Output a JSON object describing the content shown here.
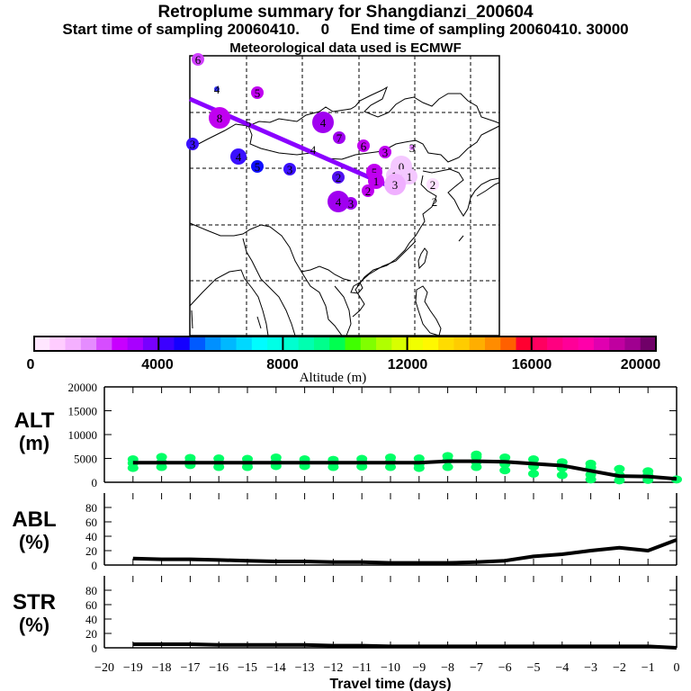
{
  "header": {
    "title": "Retroplume summary for Shangdianzi_200604",
    "subtitle": "Start time of sampling 20060410.     0     End time of sampling 20060410. 30000",
    "met_line": "Meteorological data used is ECMWF"
  },
  "map": {
    "description": "East Asia retroplume cluster map",
    "trajectory_color": "#8a00ff",
    "clusters": [
      {
        "label": "6",
        "color": "#d040ff",
        "size": "small",
        "region": "far-northwest"
      },
      {
        "label": "4",
        "color": "#3030ff",
        "size": "tiny",
        "region": "northwest"
      },
      {
        "label": "5",
        "color": "#c000f0",
        "size": "small",
        "region": "northwest"
      },
      {
        "label": "8",
        "color": "#c000f0",
        "size": "large",
        "region": "west"
      },
      {
        "label": "5",
        "color": "#000000",
        "size": "text",
        "region": "west"
      },
      {
        "label": "3",
        "color": "#3a10ff",
        "size": "small",
        "region": "far-west"
      },
      {
        "label": "4",
        "color": "#3a10ff",
        "size": "medium",
        "region": "west"
      },
      {
        "label": "5",
        "color": "#1010ff",
        "size": "small",
        "region": "west-central"
      },
      {
        "label": "3",
        "color": "#3a10ff",
        "size": "small",
        "region": "central"
      },
      {
        "label": "4",
        "color": "#000000",
        "size": "text",
        "region": "central"
      },
      {
        "label": "4",
        "color": "#a000f0",
        "size": "large",
        "region": "north-central"
      },
      {
        "label": "7",
        "color": "#a000f0",
        "size": "small",
        "region": "north-central"
      },
      {
        "label": "6",
        "color": "#c000f0",
        "size": "small",
        "region": "north"
      },
      {
        "label": "3",
        "color": "#c000f0",
        "size": "small",
        "region": "north"
      },
      {
        "label": "3",
        "color": "#e080ff",
        "size": "tiny",
        "region": "northeast"
      },
      {
        "label": "2",
        "color": "#5010f0",
        "size": "small",
        "region": "central"
      },
      {
        "label": "5",
        "color": "#c000f0",
        "size": "medium",
        "region": "near-source"
      },
      {
        "label": "1",
        "color": "#c000f0",
        "size": "medium",
        "region": "near-source"
      },
      {
        "label": "2",
        "color": "#c000f0",
        "size": "small",
        "region": "near-source"
      },
      {
        "label": "0",
        "color": "#f4c8ff",
        "size": "large",
        "region": "source"
      },
      {
        "label": "1",
        "color": "#f4c8ff",
        "size": "medium",
        "region": "source"
      },
      {
        "label": "1",
        "color": "#f4c8ff",
        "size": "medium",
        "region": "source"
      },
      {
        "label": "1",
        "color": "#f4c8ff",
        "size": "medium",
        "region": "source"
      },
      {
        "label": "3",
        "color": "#f0b0ff",
        "size": "large",
        "region": "source"
      },
      {
        "label": "4",
        "color": "#a000f0",
        "size": "large",
        "region": "south-central"
      },
      {
        "label": "3",
        "color": "#a000f0",
        "size": "small",
        "region": "south-central"
      },
      {
        "label": "2",
        "color": "#fce0ff",
        "size": "small",
        "region": "east"
      },
      {
        "label": "2",
        "color": "#ffffff",
        "size": "text",
        "region": "east"
      }
    ]
  },
  "colorbar": {
    "label": "Altitude (m)",
    "tick_labels": [
      "0",
      "4000",
      "8000",
      "12000",
      "16000",
      "20000"
    ],
    "range": [
      0,
      20000
    ],
    "colors": [
      "#ffe6ff",
      "#ffccff",
      "#f4b0ff",
      "#e58cff",
      "#d64dff",
      "#c800ff",
      "#a800ff",
      "#7800ff",
      "#3c00ff",
      "#1400ff",
      "#005aff",
      "#0090ff",
      "#00b8ff",
      "#00d8ff",
      "#00fcff",
      "#00ffe6",
      "#00ffd0",
      "#00ffb0",
      "#00ff8c",
      "#00ff50",
      "#40ff00",
      "#80ff00",
      "#b0ff00",
      "#d8ff00",
      "#f0ff00",
      "#fff800",
      "#ffdc00",
      "#ffcc00",
      "#ffae00",
      "#ff8c00",
      "#ff6000",
      "#ff0030",
      "#ff0060",
      "#ff0080",
      "#ff0098",
      "#ff00aa",
      "#e000b0",
      "#c000a0",
      "#a00090",
      "#700068"
    ]
  },
  "chart_data": [
    {
      "type": "line",
      "panel": "ALT",
      "ylabel": "ALT (m)",
      "ylim": [
        0,
        20000
      ],
      "yticks": [
        "0",
        "5000",
        "10000",
        "15000",
        "20000"
      ],
      "x": [
        -19,
        -18,
        -17,
        -16,
        -15,
        -14,
        -13,
        -12,
        -11,
        -10,
        -9,
        -8,
        -7,
        -6,
        -5,
        -4,
        -3,
        -2,
        -1,
        0
      ],
      "series": [
        {
          "name": "mean altitude",
          "color": "#000000",
          "values": [
            4100,
            4100,
            4100,
            4100,
            4100,
            4100,
            4100,
            4100,
            4100,
            4100,
            4100,
            4400,
            4400,
            4300,
            3900,
            3500,
            2400,
            1300,
            1200,
            700
          ]
        }
      ],
      "scatter": {
        "name": "cluster altitudes",
        "color": "#00ff66",
        "points": [
          [
            -19,
            3000
          ],
          [
            -19,
            4000
          ],
          [
            -19,
            4800
          ],
          [
            -18,
            3200
          ],
          [
            -18,
            4200
          ],
          [
            -18,
            5300
          ],
          [
            -17,
            3600
          ],
          [
            -17,
            4400
          ],
          [
            -17,
            5100
          ],
          [
            -16,
            3200
          ],
          [
            -16,
            4100
          ],
          [
            -16,
            5000
          ],
          [
            -15,
            3200
          ],
          [
            -15,
            4000
          ],
          [
            -15,
            4900
          ],
          [
            -14,
            3400
          ],
          [
            -14,
            4300
          ],
          [
            -14,
            5200
          ],
          [
            -13,
            3400
          ],
          [
            -13,
            4100
          ],
          [
            -13,
            4800
          ],
          [
            -12,
            3200
          ],
          [
            -12,
            4000
          ],
          [
            -12,
            4700
          ],
          [
            -11,
            3300
          ],
          [
            -11,
            4200
          ],
          [
            -11,
            4900
          ],
          [
            -10,
            3200
          ],
          [
            -10,
            4300
          ],
          [
            -10,
            5200
          ],
          [
            -9,
            3000
          ],
          [
            -9,
            3800
          ],
          [
            -9,
            5000
          ],
          [
            -8,
            3200
          ],
          [
            -8,
            4600
          ],
          [
            -8,
            5500
          ],
          [
            -7,
            3200
          ],
          [
            -7,
            4300
          ],
          [
            -7,
            5300
          ],
          [
            -7,
            5800
          ],
          [
            -6,
            2500
          ],
          [
            -6,
            3800
          ],
          [
            -6,
            5200
          ],
          [
            -5,
            1800
          ],
          [
            -5,
            3300
          ],
          [
            -5,
            4800
          ],
          [
            -4,
            1500
          ],
          [
            -4,
            3000
          ],
          [
            -4,
            4200
          ],
          [
            -3,
            600
          ],
          [
            -3,
            1600
          ],
          [
            -3,
            3100
          ],
          [
            -3,
            3900
          ],
          [
            -2,
            400
          ],
          [
            -2,
            1500
          ],
          [
            -2,
            2800
          ],
          [
            -1,
            500
          ],
          [
            -1,
            1500
          ],
          [
            -1,
            2300
          ],
          [
            0,
            600
          ]
        ]
      }
    },
    {
      "type": "line",
      "panel": "ABL",
      "ylabel": "ABL (%)",
      "ylim": [
        0,
        100
      ],
      "yticks": [
        "0",
        "20",
        "40",
        "60",
        "80"
      ],
      "x": [
        -19,
        -18,
        -17,
        -16,
        -15,
        -14,
        -13,
        -12,
        -11,
        -10,
        -9,
        -8,
        -7,
        -6,
        -5,
        -4,
        -3,
        -2,
        -1,
        0
      ],
      "series": [
        {
          "name": "ABL fraction",
          "color": "#000000",
          "values": [
            9,
            8,
            8,
            7,
            6,
            5,
            5,
            4,
            4,
            3,
            3,
            3,
            4,
            6,
            12,
            15,
            20,
            24,
            20,
            35
          ]
        }
      ]
    },
    {
      "type": "line",
      "panel": "STR",
      "ylabel": "STR (%)",
      "ylim": [
        0,
        100
      ],
      "yticks": [
        "0",
        "20",
        "40",
        "60",
        "80"
      ],
      "x": [
        -19,
        -18,
        -17,
        -16,
        -15,
        -14,
        -13,
        -12,
        -11,
        -10,
        -9,
        -8,
        -7,
        -6,
        -5,
        -4,
        -3,
        -2,
        -1,
        0
      ],
      "series": [
        {
          "name": "STR fraction",
          "color": "#000000",
          "values": [
            5,
            5,
            5,
            4,
            4,
            4,
            4,
            3,
            3,
            2,
            2,
            2,
            2,
            2,
            2,
            2,
            2,
            2,
            2,
            0
          ]
        }
      ],
      "xlabel": "Travel time (days)",
      "xlim": [
        -20,
        0
      ],
      "xticks": [
        "-20",
        "-19",
        "-18",
        "-17",
        "-16",
        "-15",
        "-14",
        "-13",
        "-12",
        "-11",
        "-10",
        "-9",
        "-8",
        "-7",
        "-6",
        "-5",
        "-4",
        "-3",
        "-2",
        "-1",
        "0"
      ]
    }
  ]
}
